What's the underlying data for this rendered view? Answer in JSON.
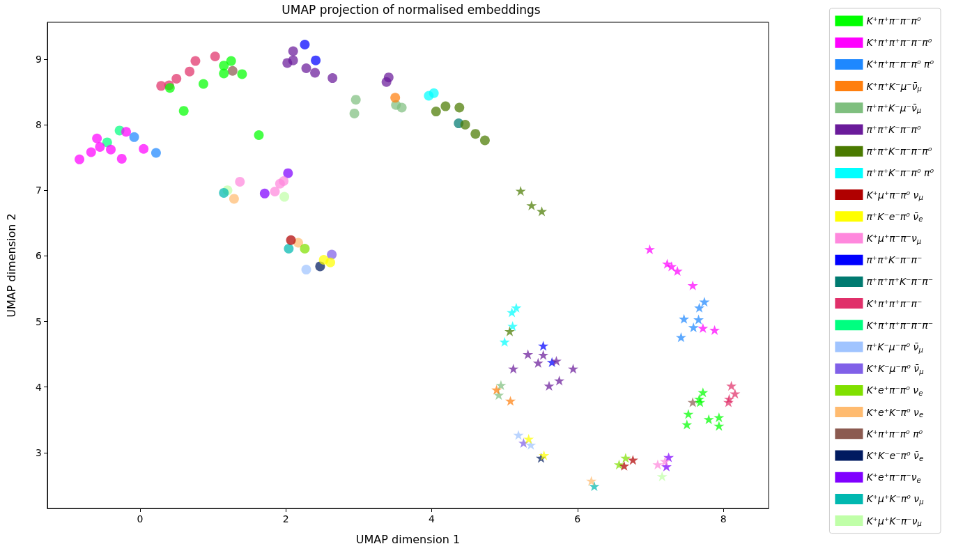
{
  "chart_data": {
    "type": "scatter",
    "title": "UMAP projection of normalised embeddings",
    "xlabel": "UMAP dimension 1",
    "ylabel": "UMAP dimension 2",
    "xlim": [
      -1.27,
      8.62
    ],
    "ylim": [
      2.15,
      9.56
    ],
    "xticks": [
      0,
      2,
      4,
      6,
      8
    ],
    "yticks": [
      3,
      4,
      5,
      6,
      7,
      8,
      9
    ],
    "grid": false,
    "legend": "right",
    "series": [
      {
        "name": "K⁺π⁺π⁻π⁻π⁰",
        "color": "#00ff00",
        "marker": "circle",
        "x": [
          0.41,
          0.6,
          0.87,
          1.15,
          1.25,
          1.15,
          1.4,
          1.63
        ],
        "values": [
          8.56,
          8.21,
          8.62,
          8.9,
          8.97,
          8.78,
          8.77,
          7.84
        ]
      },
      {
        "color": "#00ff00",
        "marker": "star",
        "x": [
          7.72,
          7.67,
          7.68,
          7.52,
          7.5,
          7.8,
          7.94,
          7.94
        ],
        "values": [
          3.92,
          3.82,
          3.77,
          3.59,
          3.43,
          3.51,
          3.54,
          3.41
        ]
      },
      {
        "name": "K⁺π⁺π⁺π⁻π⁻π⁰",
        "color": "#ff00ff",
        "marker": "circle",
        "x": [
          -0.83,
          -0.67,
          -0.59,
          -0.55,
          -0.4,
          -0.25,
          -0.19,
          0.05
        ],
        "values": [
          7.47,
          7.58,
          7.79,
          7.66,
          7.62,
          7.48,
          7.89,
          7.63
        ]
      },
      {
        "color": "#ff00ff",
        "marker": "star",
        "x": [
          6.99,
          7.23,
          7.29,
          7.37,
          7.58,
          7.72,
          7.88
        ],
        "values": [
          6.1,
          5.88,
          5.84,
          5.77,
          5.55,
          4.9,
          4.87
        ]
      },
      {
        "name": "K⁺π⁺π⁻π⁻π⁰ π⁰",
        "color": "#1e88ff",
        "marker": "circle",
        "x": [
          -0.08,
          0.22
        ],
        "values": [
          7.81,
          7.57
        ]
      },
      {
        "color": "#1e88ff",
        "marker": "star",
        "x": [
          7.74,
          7.67,
          7.46,
          7.66,
          7.59,
          7.42
        ],
        "values": [
          5.3,
          5.21,
          5.04,
          5.03,
          4.91,
          4.76
        ]
      },
      {
        "name": "K⁺π⁺K⁻μ⁻ν̄$_{μ}$",
        "color": "#ff7f0e",
        "marker": "circle",
        "x": [
          3.5
        ],
        "values": [
          8.41
        ]
      },
      {
        "color": "#ff7f0e",
        "marker": "star",
        "x": [
          4.89,
          5.08
        ],
        "values": [
          3.96,
          3.79
        ]
      },
      {
        "name": "π⁺π⁺K⁻μ⁻ν̄$_{μ}$",
        "color": "#7fbf7f",
        "marker": "circle",
        "x": [
          2.96,
          2.94,
          3.51,
          3.59
        ],
        "values": [
          8.38,
          8.17,
          8.3,
          8.26
        ]
      },
      {
        "color": "#7fbf7f",
        "marker": "star",
        "x": [
          4.95,
          4.92
        ],
        "values": [
          4.03,
          3.88
        ]
      },
      {
        "name": "π⁺π⁺K⁻π⁻π⁰",
        "color": "#6a1b9a",
        "marker": "circle",
        "x": [
          2.1,
          2.1,
          2.02,
          2.28,
          2.4,
          2.64,
          3.41,
          3.38
        ],
        "values": [
          9.12,
          8.98,
          8.94,
          8.86,
          8.79,
          8.71,
          8.72,
          8.65
        ]
      },
      {
        "color": "#6a1b9a",
        "marker": "star",
        "x": [
          5.32,
          5.53,
          5.46,
          5.71,
          5.12,
          5.94,
          5.75,
          5.61
        ],
        "values": [
          4.5,
          4.49,
          4.37,
          4.4,
          4.28,
          4.28,
          4.1,
          4.02
        ]
      },
      {
        "name": "π⁺π⁺K⁻π⁻π⁻π⁰",
        "color": "#4a7a00",
        "marker": "circle",
        "x": [
          4.06,
          4.19,
          4.38,
          4.46,
          4.6,
          4.73
        ],
        "values": [
          8.2,
          8.28,
          8.26,
          8.0,
          7.86,
          7.76
        ]
      },
      {
        "color": "#4a7a00",
        "marker": "star",
        "x": [
          5.22,
          5.37,
          5.51,
          5.07
        ],
        "values": [
          6.99,
          6.77,
          6.68,
          4.85
        ]
      },
      {
        "name": "π⁺π⁺K⁻π⁻π⁰ π⁰",
        "color": "#00ffff",
        "marker": "circle",
        "x": [
          3.96,
          4.03
        ],
        "values": [
          8.44,
          8.48
        ]
      },
      {
        "color": "#00ffff",
        "marker": "star",
        "x": [
          5.16,
          5.1,
          5.11,
          5.0
        ],
        "values": [
          5.21,
          5.14,
          4.93,
          4.69
        ]
      },
      {
        "name": "K⁺μ⁺π⁻π⁰ ν$_{μ}$",
        "color": "#b00000",
        "marker": "circle",
        "x": [
          2.07
        ],
        "values": [
          6.24
        ]
      },
      {
        "color": "#b00000",
        "marker": "star",
        "x": [
          6.64,
          6.76
        ],
        "values": [
          2.8,
          2.89
        ]
      },
      {
        "name": "π⁺K⁻e⁻π⁰ ν̄$_{e}$",
        "color": "#ffff00",
        "marker": "circle",
        "x": [
          2.52,
          2.61
        ],
        "values": [
          5.94,
          5.9
        ]
      },
      {
        "color": "#ffff00",
        "marker": "star",
        "x": [
          5.33,
          5.54
        ],
        "values": [
          3.21,
          2.96
        ]
      },
      {
        "name": "K⁺μ⁺π⁻π⁻ν$_{μ}$",
        "color": "#ff88dd",
        "marker": "circle",
        "x": [
          1.37,
          1.85,
          1.92,
          1.97
        ],
        "values": [
          7.13,
          6.98,
          7.1,
          7.14
        ]
      },
      {
        "color": "#ff88dd",
        "marker": "star",
        "x": [
          7.1,
          7.2
        ],
        "values": [
          2.82,
          2.87
        ]
      },
      {
        "name": "π⁺π⁺K⁻π⁻π⁻",
        "color": "#0000ff",
        "marker": "circle",
        "x": [
          2.26,
          2.41
        ],
        "values": [
          9.22,
          8.98
        ]
      },
      {
        "color": "#0000ff",
        "marker": "star",
        "x": [
          5.53,
          5.65
        ],
        "values": [
          4.63,
          4.38
        ]
      },
      {
        "name": "π⁺π⁺π⁺K⁻π⁻π⁻",
        "color": "#007a70",
        "marker": "circle",
        "x": [
          4.37
        ],
        "values": [
          8.02
        ]
      },
      {
        "name": "K⁺π⁺π⁺π⁻π⁻",
        "color": "#e0306a",
        "marker": "circle",
        "x": [
          0.29,
          0.4,
          0.5,
          0.68,
          0.76,
          1.03
        ],
        "values": [
          8.59,
          8.6,
          8.7,
          8.81,
          8.97,
          9.04
        ]
      },
      {
        "color": "#e0306a",
        "marker": "star",
        "x": [
          8.11,
          8.16,
          8.08,
          8.07
        ],
        "values": [
          4.02,
          3.9,
          3.82,
          3.77
        ]
      },
      {
        "name": "K⁺π⁺π⁺π⁻π⁻π⁻",
        "color": "#00ff80",
        "marker": "circle",
        "x": [
          -0.28,
          -0.45
        ],
        "values": [
          7.91,
          7.73
        ]
      },
      {
        "name": "π⁺K⁻μ⁻π⁰ ν̄$_{μ}$",
        "color": "#a0c4ff",
        "marker": "circle",
        "x": [
          2.28
        ],
        "values": [
          5.79
        ]
      },
      {
        "color": "#a0c4ff",
        "marker": "star",
        "x": [
          5.19,
          5.36
        ],
        "values": [
          3.27,
          3.12
        ]
      },
      {
        "name": "K⁺K⁻μ⁻π⁰ ν̄$_{μ}$",
        "color": "#8060e8",
        "marker": "circle",
        "x": [
          2.63
        ],
        "values": [
          6.02
        ]
      },
      {
        "color": "#8060e8",
        "marker": "star",
        "x": [
          5.26
        ],
        "values": [
          3.15
        ]
      },
      {
        "name": "K⁺e⁺π⁻π⁰ ν$_{e}$",
        "color": "#80e000",
        "marker": "circle",
        "x": [
          2.26
        ],
        "values": [
          6.11
        ]
      },
      {
        "color": "#80e000",
        "marker": "star",
        "x": [
          6.57,
          6.66
        ],
        "values": [
          2.82,
          2.92
        ]
      },
      {
        "name": "K⁺e⁺K⁻π⁰ ν$_{e}$",
        "color": "#ffbb70",
        "marker": "circle",
        "x": [
          1.29,
          2.17
        ],
        "values": [
          6.87,
          6.2
        ]
      },
      {
        "color": "#ffbb70",
        "marker": "star",
        "x": [
          6.19
        ],
        "values": [
          2.57
        ]
      },
      {
        "name": "K⁺π⁺π⁻π⁰ π⁰",
        "color": "#8b5a50",
        "marker": "circle",
        "x": [
          1.27
        ],
        "values": [
          8.82
        ]
      },
      {
        "color": "#8b5a50",
        "marker": "star",
        "x": [
          7.58
        ],
        "values": [
          3.77
        ]
      },
      {
        "name": "K⁺K⁻e⁻π⁰ ν̄$_{e}$",
        "color": "#001a60",
        "marker": "circle",
        "x": [
          2.47
        ],
        "values": [
          5.84
        ]
      },
      {
        "color": "#001a60",
        "marker": "star",
        "x": [
          5.5
        ],
        "values": [
          2.92
        ]
      },
      {
        "name": "K⁺e⁺π⁻π⁻ν$_{e}$",
        "color": "#8000ff",
        "marker": "circle",
        "x": [
          1.71,
          2.03
        ],
        "values": [
          6.95,
          7.26
        ]
      },
      {
        "color": "#8000ff",
        "marker": "star",
        "x": [
          7.25,
          7.22
        ],
        "values": [
          2.93,
          2.79
        ]
      },
      {
        "name": "K⁺μ⁺K⁻π⁰ ν$_{μ}$",
        "color": "#00b8b0",
        "marker": "circle",
        "x": [
          1.15,
          2.04
        ],
        "values": [
          6.96,
          6.11
        ]
      },
      {
        "color": "#00b8b0",
        "marker": "star",
        "x": [
          6.23
        ],
        "values": [
          2.49
        ]
      },
      {
        "name": "K⁺μ⁺K⁻π⁻ν$_{μ}$",
        "color": "#c0ffa8",
        "marker": "circle",
        "x": [
          1.2,
          1.98
        ],
        "values": [
          7.0,
          6.9
        ]
      },
      {
        "color": "#c0ffa8",
        "marker": "star",
        "x": [
          7.16
        ],
        "values": [
          2.64
        ]
      }
    ]
  }
}
